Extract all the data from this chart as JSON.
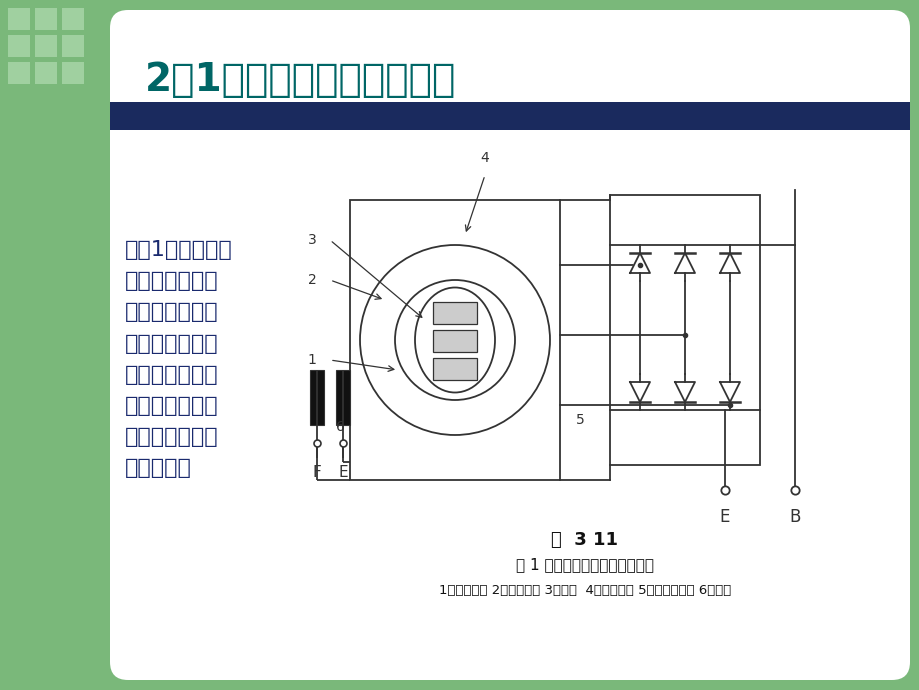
{
  "bg_color": "#7ab87a",
  "slide_bg": "#ffffff",
  "title_text": "2．1．交流发电机发电原理",
  "title_color": "#006666",
  "title_fontsize": 28,
  "bar_color": "#1a2a5e",
  "body_text": "如图1所示，发电\n机定子的三相绕\n组按一定规律分\n布在发电机的定\n子槽中，内部有\n一个转子，转子\n上安装着爪极和\n励磁绕组。",
  "body_color": "#1a2a6e",
  "body_fontsize": 16,
  "caption1": "图  3 11",
  "caption2": "图 1 交流发电机发电原理示意图",
  "caption3": "1－定子铁心 2－定子绕组 3－转子  4－励磁绕组 5－整流二极管 6－电刷",
  "caption_color": "#111111",
  "diagram_color": "#333333",
  "label_color": "#333333"
}
